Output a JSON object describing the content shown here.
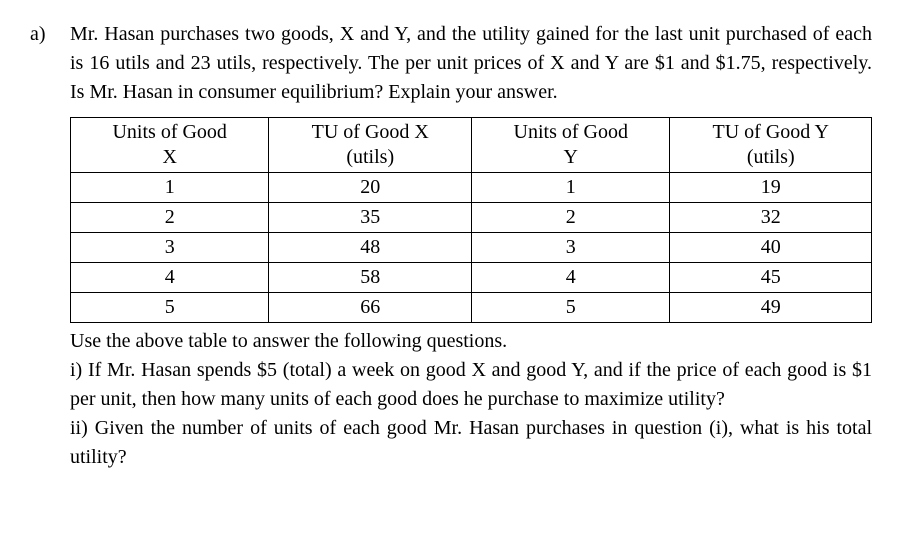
{
  "label": "a)",
  "intro": "Mr. Hasan purchases two goods, X and Y, and the utility gained for the last unit purchased of each is 16 utils and 23 utils, respectively. The per unit prices of X and Y are $1 and $1.75, respectively. Is Mr. Hasan in consumer equilibrium? Explain your answer.",
  "table": {
    "headers": {
      "c1a": "Units of Good",
      "c1b": "X",
      "c2a": "TU of Good X",
      "c2b": "(utils)",
      "c3a": "Units of Good",
      "c3b": "Y",
      "c4a": "TU of Good Y",
      "c4b": "(utils)"
    },
    "rows": [
      {
        "c1": "1",
        "c2": "20",
        "c3": "1",
        "c4": "19"
      },
      {
        "c1": "2",
        "c2": "35",
        "c3": "2",
        "c4": "32"
      },
      {
        "c1": "3",
        "c2": "48",
        "c3": "3",
        "c4": "40"
      },
      {
        "c1": "4",
        "c2": "58",
        "c3": "4",
        "c4": "45"
      },
      {
        "c1": "5",
        "c2": "66",
        "c3": "5",
        "c4": "49"
      }
    ]
  },
  "afterTable": "Use the above table to answer the following questions.",
  "q1": "i) If Mr. Hasan spends $5 (total) a week on good X and good Y, and if the price of each good is $1 per unit, then how many units of each good does he purchase to maximize utility?",
  "q2": "ii) Given the number of units of each good Mr. Hasan purchases in question (i), what is his total utility?"
}
